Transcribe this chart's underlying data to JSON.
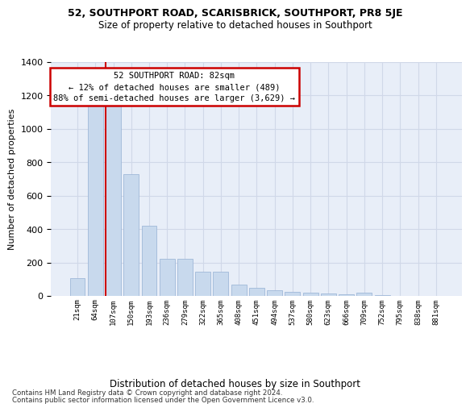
{
  "title": "52, SOUTHPORT ROAD, SCARISBRICK, SOUTHPORT, PR8 5JE",
  "subtitle": "Size of property relative to detached houses in Southport",
  "xlabel": "Distribution of detached houses by size in Southport",
  "ylabel": "Number of detached properties",
  "categories": [
    "21sqm",
    "64sqm",
    "107sqm",
    "150sqm",
    "193sqm",
    "236sqm",
    "279sqm",
    "322sqm",
    "365sqm",
    "408sqm",
    "451sqm",
    "494sqm",
    "537sqm",
    "580sqm",
    "623sqm",
    "666sqm",
    "709sqm",
    "752sqm",
    "795sqm",
    "838sqm",
    "881sqm"
  ],
  "values": [
    105,
    1160,
    1155,
    730,
    420,
    220,
    220,
    145,
    145,
    70,
    50,
    32,
    25,
    18,
    15,
    12,
    20,
    5,
    2,
    2,
    2
  ],
  "bar_color": "#c8d9ed",
  "bar_edge_color": "#a0b8d8",
  "line_color": "#cc0000",
  "annotation_line1": "52 SOUTHPORT ROAD: 82sqm",
  "annotation_line2": "← 12% of detached houses are smaller (489)",
  "annotation_line3": "88% of semi-detached houses are larger (3,629) →",
  "annotation_box_facecolor": "#ffffff",
  "annotation_box_edgecolor": "#cc0000",
  "ylim": [
    0,
    1400
  ],
  "yticks": [
    0,
    200,
    400,
    600,
    800,
    1000,
    1200,
    1400
  ],
  "grid_color": "#d0d8e8",
  "bg_color": "#e8eef8",
  "footer1": "Contains HM Land Registry data © Crown copyright and database right 2024.",
  "footer2": "Contains public sector information licensed under the Open Government Licence v3.0."
}
